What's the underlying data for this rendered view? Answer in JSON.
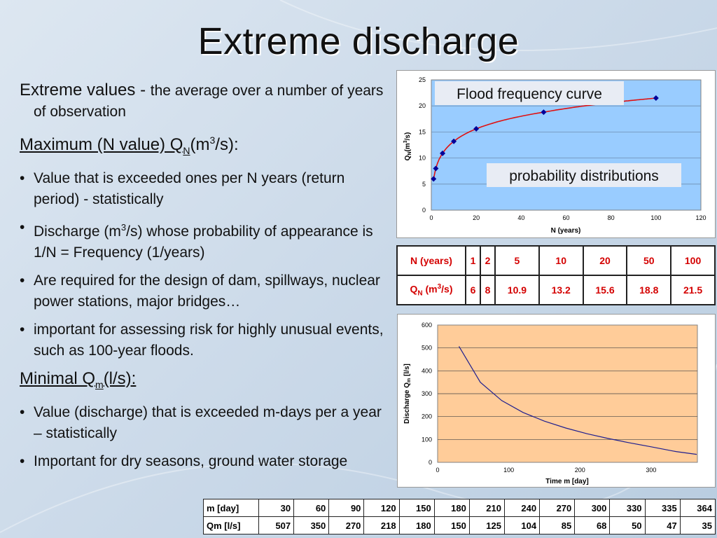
{
  "slide": {
    "title": "Extreme discharge",
    "extreme": {
      "term": "Extreme values - ",
      "definition": "the average over a number of years of observation"
    },
    "maximum": {
      "label_pre": "Maximum (N value) Q",
      "sub": "N",
      "label_mid": "(m",
      "sup": "3",
      "label_post": "/s):"
    },
    "max_bullets": [
      {
        "text": "Value that is exceeded ones per N years (return period) - statistically"
      },
      {
        "pre": "Discharge (m",
        "sup": "3",
        "post": "/s) whose probability of appearance is 1/N = Frequency (1/years)"
      },
      {
        "text": "Are required for the design of dam, spillways, nuclear power stations, major bridges…"
      },
      {
        "text": "important for assessing risk for highly unusual events, such as 100-year floods."
      }
    ],
    "minimal": {
      "label_pre": "Minimal Q",
      "sub": "m",
      "label_post": "(l/s):"
    },
    "min_bullets": [
      {
        "text": "Value (discharge) that is exceeded m-days per a year – statistically"
      },
      {
        "text": "Important for dry seasons, ground water storage"
      }
    ]
  },
  "colors": {
    "plot1_bg": "#99ccff",
    "plot2_bg": "#ffcc99",
    "curve1": "#e01010",
    "marker1": "#000099",
    "curve2": "#1f1f8f",
    "table_red": "#d40000"
  },
  "chart_data": [
    {
      "type": "scatter",
      "x": [
        1,
        2,
        5,
        10,
        20,
        50,
        100
      ],
      "y": [
        6,
        8,
        10.9,
        13.2,
        15.6,
        18.8,
        21.5
      ],
      "xlabel": "N (years)",
      "ylabel_q": "Q",
      "ylabel_sub": "N",
      "ylabel_unit_pre": "(m",
      "ylabel_sup": "3",
      "ylabel_unit_post": "/s)",
      "xlim": [
        0,
        120
      ],
      "ylim": [
        0,
        25
      ],
      "xticks": [
        0,
        20,
        40,
        60,
        80,
        100,
        120
      ],
      "yticks": [
        0,
        5,
        10,
        15,
        20,
        25
      ],
      "annotations": [
        "Flood frequency curve",
        "probability distributions"
      ],
      "grid": true
    },
    {
      "type": "line",
      "x": [
        30,
        60,
        90,
        120,
        150,
        180,
        210,
        240,
        270,
        300,
        330,
        335,
        364
      ],
      "y": [
        507,
        350,
        270,
        218,
        180,
        150,
        125,
        104,
        85,
        68,
        50,
        47,
        35
      ],
      "xlabel": "Time m [day]",
      "ylabel": "Discharge Q",
      "ylabel_sub": "m",
      "ylabel_unit": " [l/s]",
      "xlim": [
        0,
        365
      ],
      "ylim": [
        0,
        600
      ],
      "xticks": [
        0,
        100,
        200,
        300
      ],
      "yticks": [
        0,
        100,
        200,
        300,
        400,
        500,
        600
      ],
      "grid": true
    }
  ],
  "table_n": {
    "row1": {
      "label": "N (years)",
      "values": [
        "1",
        "2",
        "5",
        "10",
        "20",
        "50",
        "100"
      ]
    },
    "row2": {
      "label_q": "Q",
      "label_sub": "N",
      "label_unit_pre": " (m",
      "label_sup": "3",
      "label_unit_post": "/s)",
      "values": [
        "6",
        "8",
        "10.9",
        "13.2",
        "15.6",
        "18.8",
        "21.5"
      ]
    }
  },
  "table_m": {
    "row1": {
      "label": "m [day]",
      "values": [
        "30",
        "60",
        "90",
        "120",
        "150",
        "180",
        "210",
        "240",
        "270",
        "300",
        "330",
        "335",
        "364"
      ]
    },
    "row2": {
      "label": "Qm [l/s]",
      "values": [
        "507",
        "350",
        "270",
        "218",
        "180",
        "150",
        "125",
        "104",
        "85",
        "68",
        "50",
        "47",
        "35"
      ]
    }
  }
}
